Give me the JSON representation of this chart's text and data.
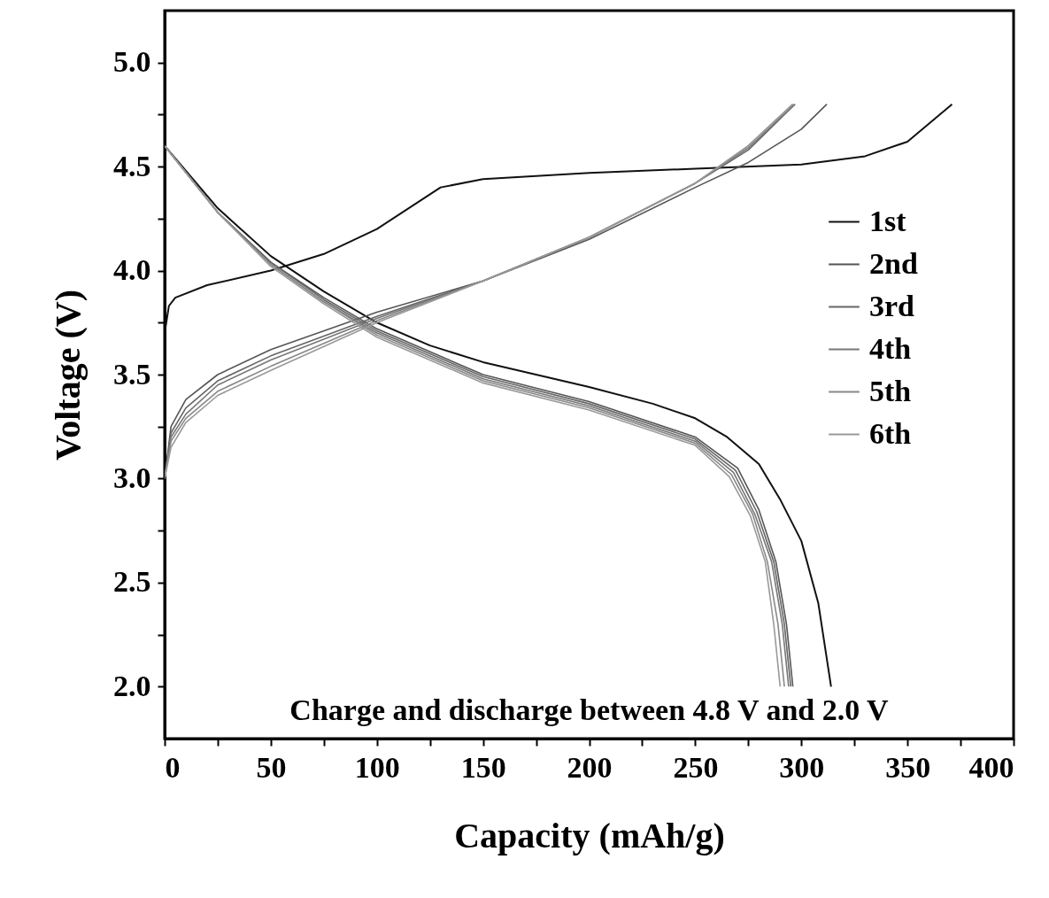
{
  "chart_data": {
    "type": "line",
    "xlabel": "Capacity (mAh/g)",
    "ylabel": "Voltage (V)",
    "annotations": [
      "Charge and discharge between 4.8 V and 2.0 V"
    ],
    "xlim": [
      0,
      400
    ],
    "ylim": [
      1.75,
      5.25
    ],
    "xticks": [
      0,
      {
        "value": 25,
        "label": null
      },
      50,
      {
        "value": 75,
        "label": null
      },
      100,
      {
        "value": 125,
        "label": null
      },
      150,
      {
        "value": 175,
        "label": null
      },
      200,
      {
        "value": 225,
        "label": null
      },
      250,
      {
        "value": 275,
        "label": null
      },
      300,
      {
        "value": 325,
        "label": null
      },
      350,
      {
        "value": 375,
        "label": null
      },
      400
    ],
    "yticks": [
      {
        "value": 2,
        "label": "2.0"
      },
      {
        "value": 2.25,
        "label": null
      },
      {
        "value": 2.5,
        "label": "2.5"
      },
      {
        "value": 2.75,
        "label": null
      },
      {
        "value": 3,
        "label": "3.0"
      },
      {
        "value": 3.25,
        "label": null
      },
      {
        "value": 3.5,
        "label": "3.5"
      },
      {
        "value": 3.75,
        "label": null
      },
      {
        "value": 4,
        "label": "4.0"
      },
      {
        "value": 4.25,
        "label": null
      },
      {
        "value": 4.5,
        "label": "4.5"
      },
      {
        "value": 4.75,
        "label": null
      },
      {
        "value": 5,
        "label": "5.0"
      }
    ],
    "legend": "right",
    "grid": false,
    "marker": "none",
    "line_style": "solid",
    "series": [
      {
        "name": "1st",
        "color": "#111111",
        "x": [
          0,
          2,
          5,
          20,
          50,
          75,
          100,
          115,
          130,
          150,
          200,
          250,
          300,
          330,
          350,
          371
        ],
        "values": [
          3.7,
          3.83,
          3.87,
          3.93,
          4.0,
          4.08,
          4.2,
          4.3,
          4.4,
          4.44,
          4.47,
          4.49,
          4.51,
          4.55,
          4.62,
          4.8
        ]
      },
      {
        "color": "#111111",
        "x": [
          0,
          25,
          50,
          75,
          100,
          125,
          150,
          200,
          230,
          250,
          265,
          280,
          290,
          300,
          308,
          314
        ],
        "values": [
          4.6,
          4.3,
          4.07,
          3.9,
          3.75,
          3.64,
          3.56,
          3.44,
          3.36,
          3.29,
          3.2,
          3.07,
          2.9,
          2.7,
          2.4,
          2.0
        ]
      },
      {
        "name": "2nd",
        "color": "#555555",
        "x": [
          0,
          3,
          10,
          25,
          50,
          100,
          150,
          200,
          250,
          275,
          300,
          312
        ],
        "values": [
          3.0,
          3.25,
          3.38,
          3.5,
          3.62,
          3.8,
          3.95,
          4.15,
          4.4,
          4.52,
          4.68,
          4.8
        ]
      },
      {
        "color": "#555555",
        "x": [
          0,
          25,
          50,
          75,
          100,
          150,
          200,
          250,
          270,
          280,
          288,
          293,
          296
        ],
        "values": [
          4.6,
          4.28,
          4.04,
          3.87,
          3.72,
          3.5,
          3.37,
          3.2,
          3.05,
          2.85,
          2.6,
          2.3,
          2.0
        ]
      },
      {
        "name": "3rd",
        "color": "#666666",
        "x": [
          0,
          3,
          10,
          25,
          50,
          100,
          150,
          200,
          250,
          275,
          297
        ],
        "values": [
          3.0,
          3.22,
          3.34,
          3.47,
          3.59,
          3.78,
          3.95,
          4.16,
          4.42,
          4.58,
          4.8
        ]
      },
      {
        "color": "#666666",
        "x": [
          0,
          25,
          50,
          75,
          100,
          150,
          200,
          250,
          269,
          279,
          287,
          292,
          295
        ],
        "values": [
          4.6,
          4.28,
          4.04,
          3.86,
          3.71,
          3.49,
          3.36,
          3.19,
          3.04,
          2.84,
          2.6,
          2.3,
          2.0
        ]
      },
      {
        "name": "4th",
        "color": "#777777",
        "x": [
          0,
          3,
          10,
          25,
          50,
          100,
          150,
          200,
          250,
          275,
          297
        ],
        "values": [
          3.0,
          3.2,
          3.31,
          3.45,
          3.57,
          3.77,
          3.95,
          4.16,
          4.42,
          4.59,
          4.8
        ]
      },
      {
        "color": "#777777",
        "x": [
          0,
          25,
          50,
          75,
          100,
          150,
          200,
          250,
          268,
          278,
          286,
          291,
          294
        ],
        "values": [
          4.6,
          4.28,
          4.03,
          3.85,
          3.7,
          3.48,
          3.35,
          3.18,
          3.03,
          2.83,
          2.6,
          2.3,
          2.0
        ]
      },
      {
        "name": "5th",
        "color": "#888888",
        "x": [
          0,
          3,
          10,
          25,
          50,
          100,
          150,
          200,
          250,
          275,
          296
        ],
        "values": [
          3.0,
          3.18,
          3.29,
          3.42,
          3.54,
          3.76,
          3.95,
          4.16,
          4.42,
          4.6,
          4.8
        ]
      },
      {
        "color": "#888888",
        "x": [
          0,
          25,
          50,
          75,
          100,
          150,
          200,
          250,
          267,
          277,
          284,
          289,
          292
        ],
        "values": [
          4.6,
          4.28,
          4.03,
          3.85,
          3.69,
          3.47,
          3.34,
          3.17,
          3.02,
          2.83,
          2.6,
          2.3,
          2.0
        ]
      },
      {
        "name": "6th",
        "color": "#999999",
        "x": [
          0,
          3,
          10,
          25,
          50,
          100,
          150,
          200,
          250,
          275,
          296
        ],
        "values": [
          3.0,
          3.15,
          3.27,
          3.4,
          3.52,
          3.75,
          3.95,
          4.16,
          4.42,
          4.6,
          4.8
        ]
      },
      {
        "color": "#999999",
        "x": [
          0,
          25,
          50,
          75,
          100,
          150,
          200,
          250,
          266,
          276,
          283,
          287,
          290
        ],
        "values": [
          4.6,
          4.28,
          4.02,
          3.84,
          3.68,
          3.46,
          3.33,
          3.16,
          3.01,
          2.82,
          2.6,
          2.3,
          2.0
        ]
      }
    ]
  }
}
